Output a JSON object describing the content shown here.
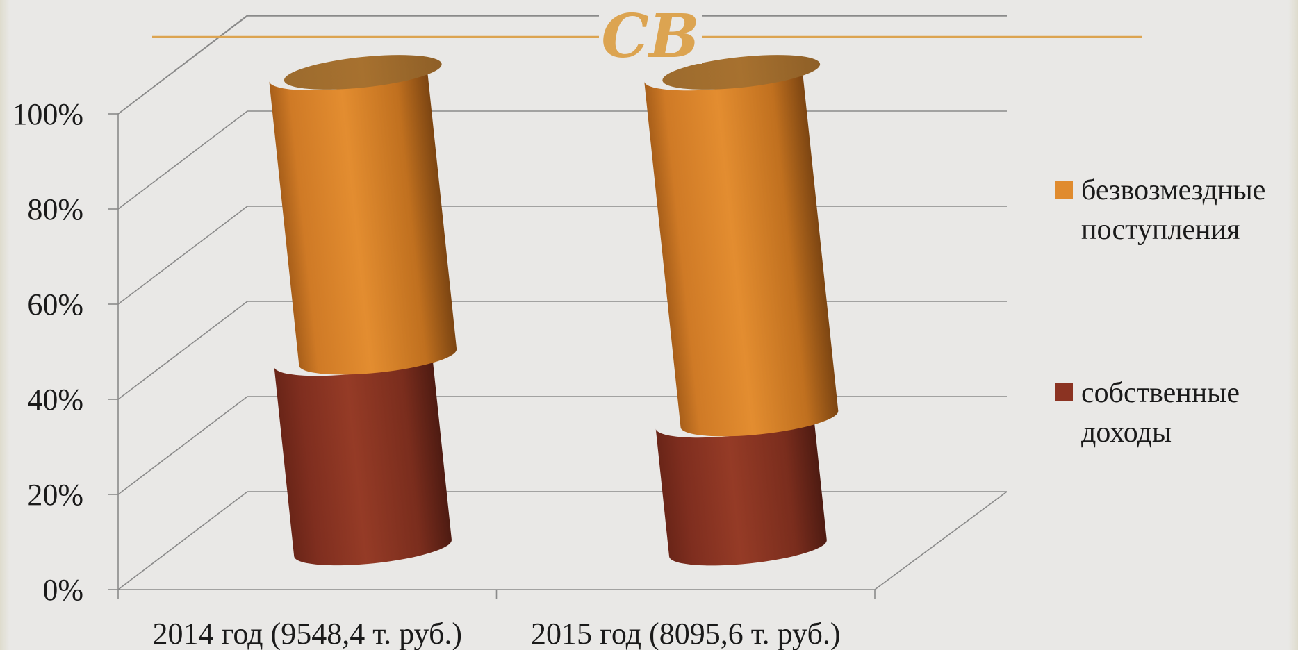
{
  "chart_data": {
    "type": "bar",
    "stacked": true,
    "percent": true,
    "three_d": true,
    "bar_shape": "cylinder",
    "categories": [
      "2014 год (9548,4 т. руб.)",
      "2015 год (8095,6 т. руб.)"
    ],
    "series": [
      {
        "name": "собственные доходы",
        "values": [
          40,
          27
        ],
        "color": "#8b3322"
      },
      {
        "name": "безвозмездные поступления",
        "values": [
          60,
          73
        ],
        "color": "#e08b2e"
      }
    ],
    "y_ticks": [
      "0%",
      "20%",
      "40%",
      "60%",
      "80%",
      "100%"
    ],
    "ylim": [
      0,
      100
    ],
    "grid": true,
    "legend_position": "right",
    "legend": [
      {
        "label": "безвозмездные поступления",
        "color": "#e08b2e"
      },
      {
        "label": "собственные доходы",
        "color": "#8b3322"
      }
    ]
  },
  "decoration": {
    "ornament_glyph": "CB",
    "ornament_color": "#dca451",
    "line_color": "#dca451"
  }
}
